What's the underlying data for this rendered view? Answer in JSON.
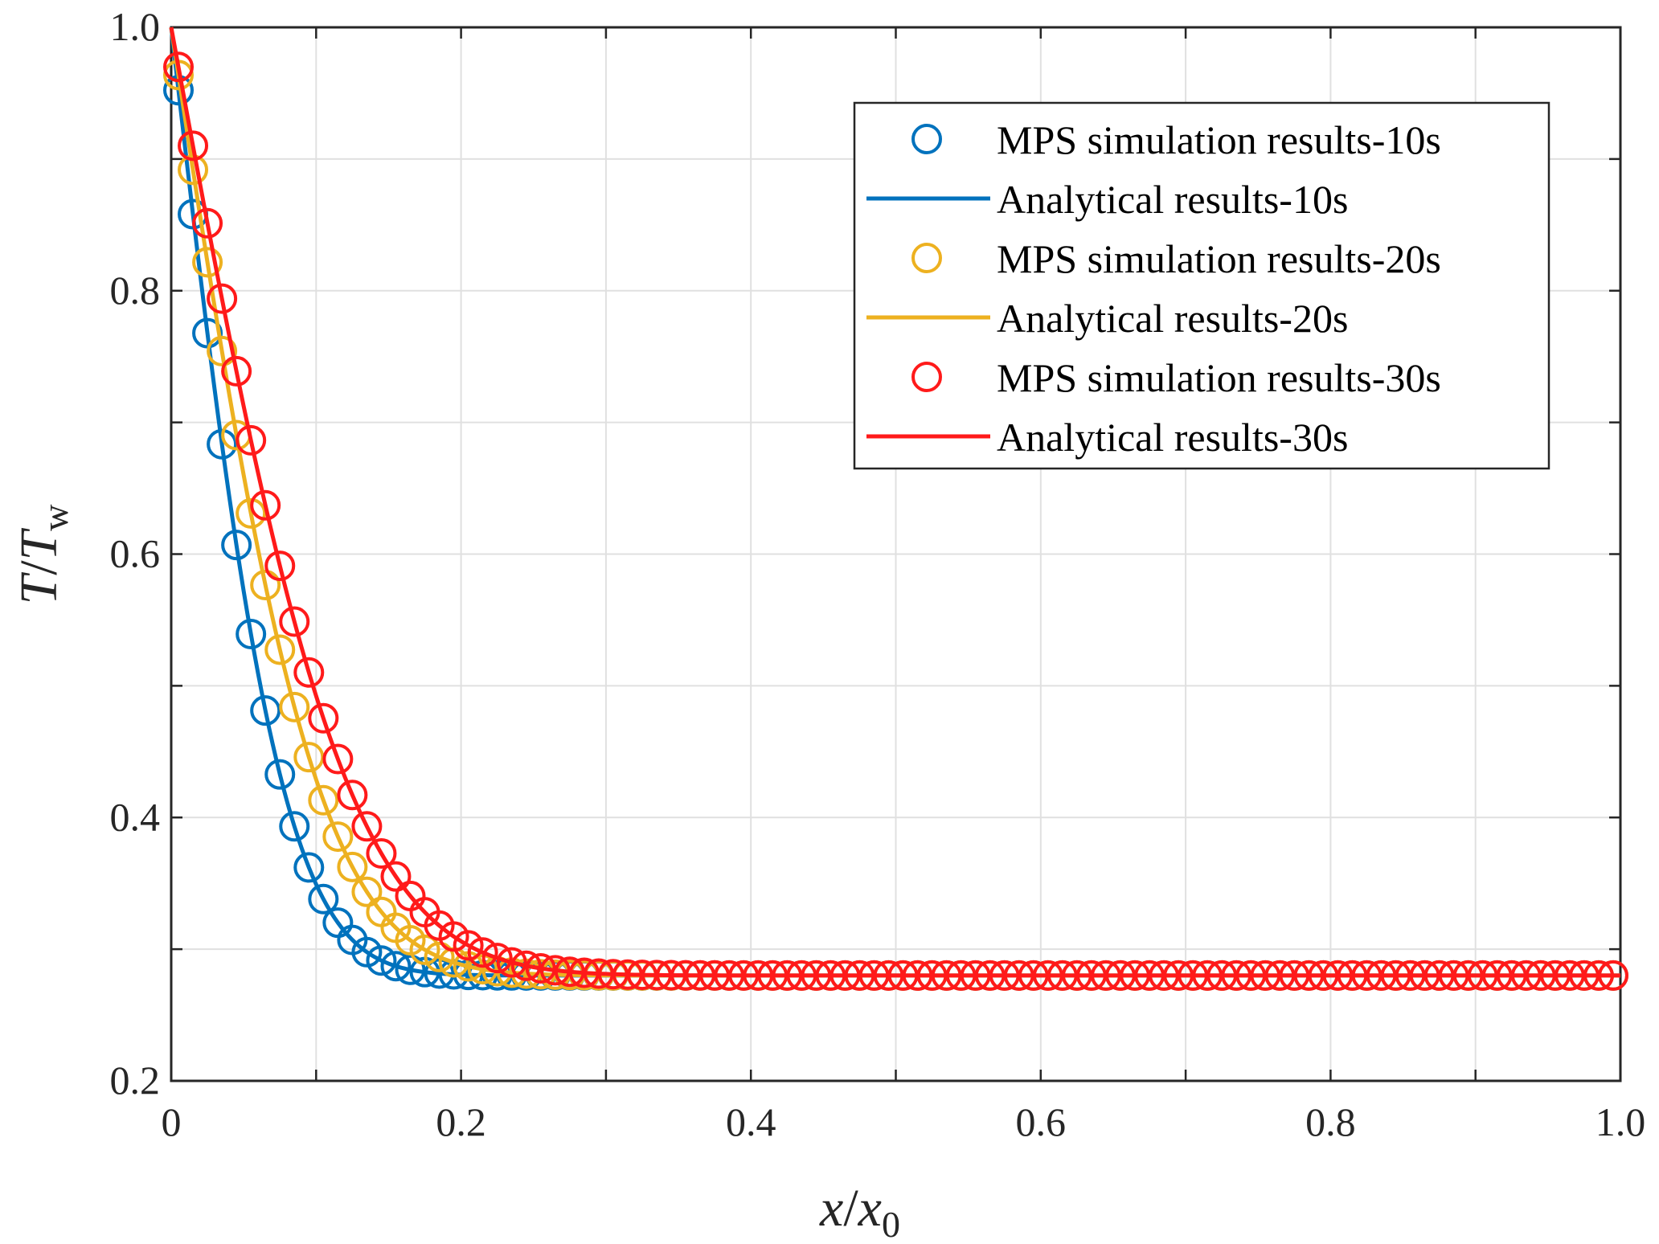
{
  "chart_data": {
    "type": "line",
    "title": "",
    "xlabel": {
      "var": "x",
      "slash": "/",
      "denom": "x",
      "denom_sub": "0"
    },
    "ylabel": {
      "var": "T",
      "slash": "/",
      "denom": "T",
      "denom_sub": "w"
    },
    "xlim": [
      0,
      1
    ],
    "ylim": [
      0.2,
      1
    ],
    "x_ticks": [
      0,
      0.2,
      0.4,
      0.6,
      0.8,
      1.0
    ],
    "x_tick_labels": [
      "0",
      "0.2",
      "0.4",
      "0.6",
      "0.8",
      "1.0"
    ],
    "y_ticks": [
      0.2,
      0.4,
      0.6,
      0.8,
      1.0
    ],
    "y_tick_labels": [
      "0.2",
      "0.4",
      "0.6",
      "0.8",
      "1.0"
    ],
    "grid": true,
    "legend_position": "top-right",
    "initial_temperature_ratio": 0.28,
    "marker_spacing": 0.01,
    "series": [
      {
        "name": "MPS simulation results-10s",
        "kind": "markers",
        "time_s": 10,
        "color": "#0072BD",
        "profile_scale": 0.085
      },
      {
        "name": "Analytical results-10s",
        "kind": "line",
        "time_s": 10,
        "color": "#0072BD",
        "profile_scale": 0.085
      },
      {
        "name": "MPS simulation results-20s",
        "kind": "markers",
        "time_s": 20,
        "color": "#EDB120",
        "profile_scale": 0.112
      },
      {
        "name": "Analytical results-20s",
        "kind": "line",
        "time_s": 20,
        "color": "#EDB120",
        "profile_scale": 0.112
      },
      {
        "name": "MPS simulation results-30s",
        "kind": "markers",
        "time_s": 30,
        "color": "#FF1A1A",
        "profile_scale": 0.135
      },
      {
        "name": "Analytical results-30s",
        "kind": "line",
        "time_s": 30,
        "color": "#FF1A1A",
        "profile_scale": 0.135
      }
    ]
  }
}
